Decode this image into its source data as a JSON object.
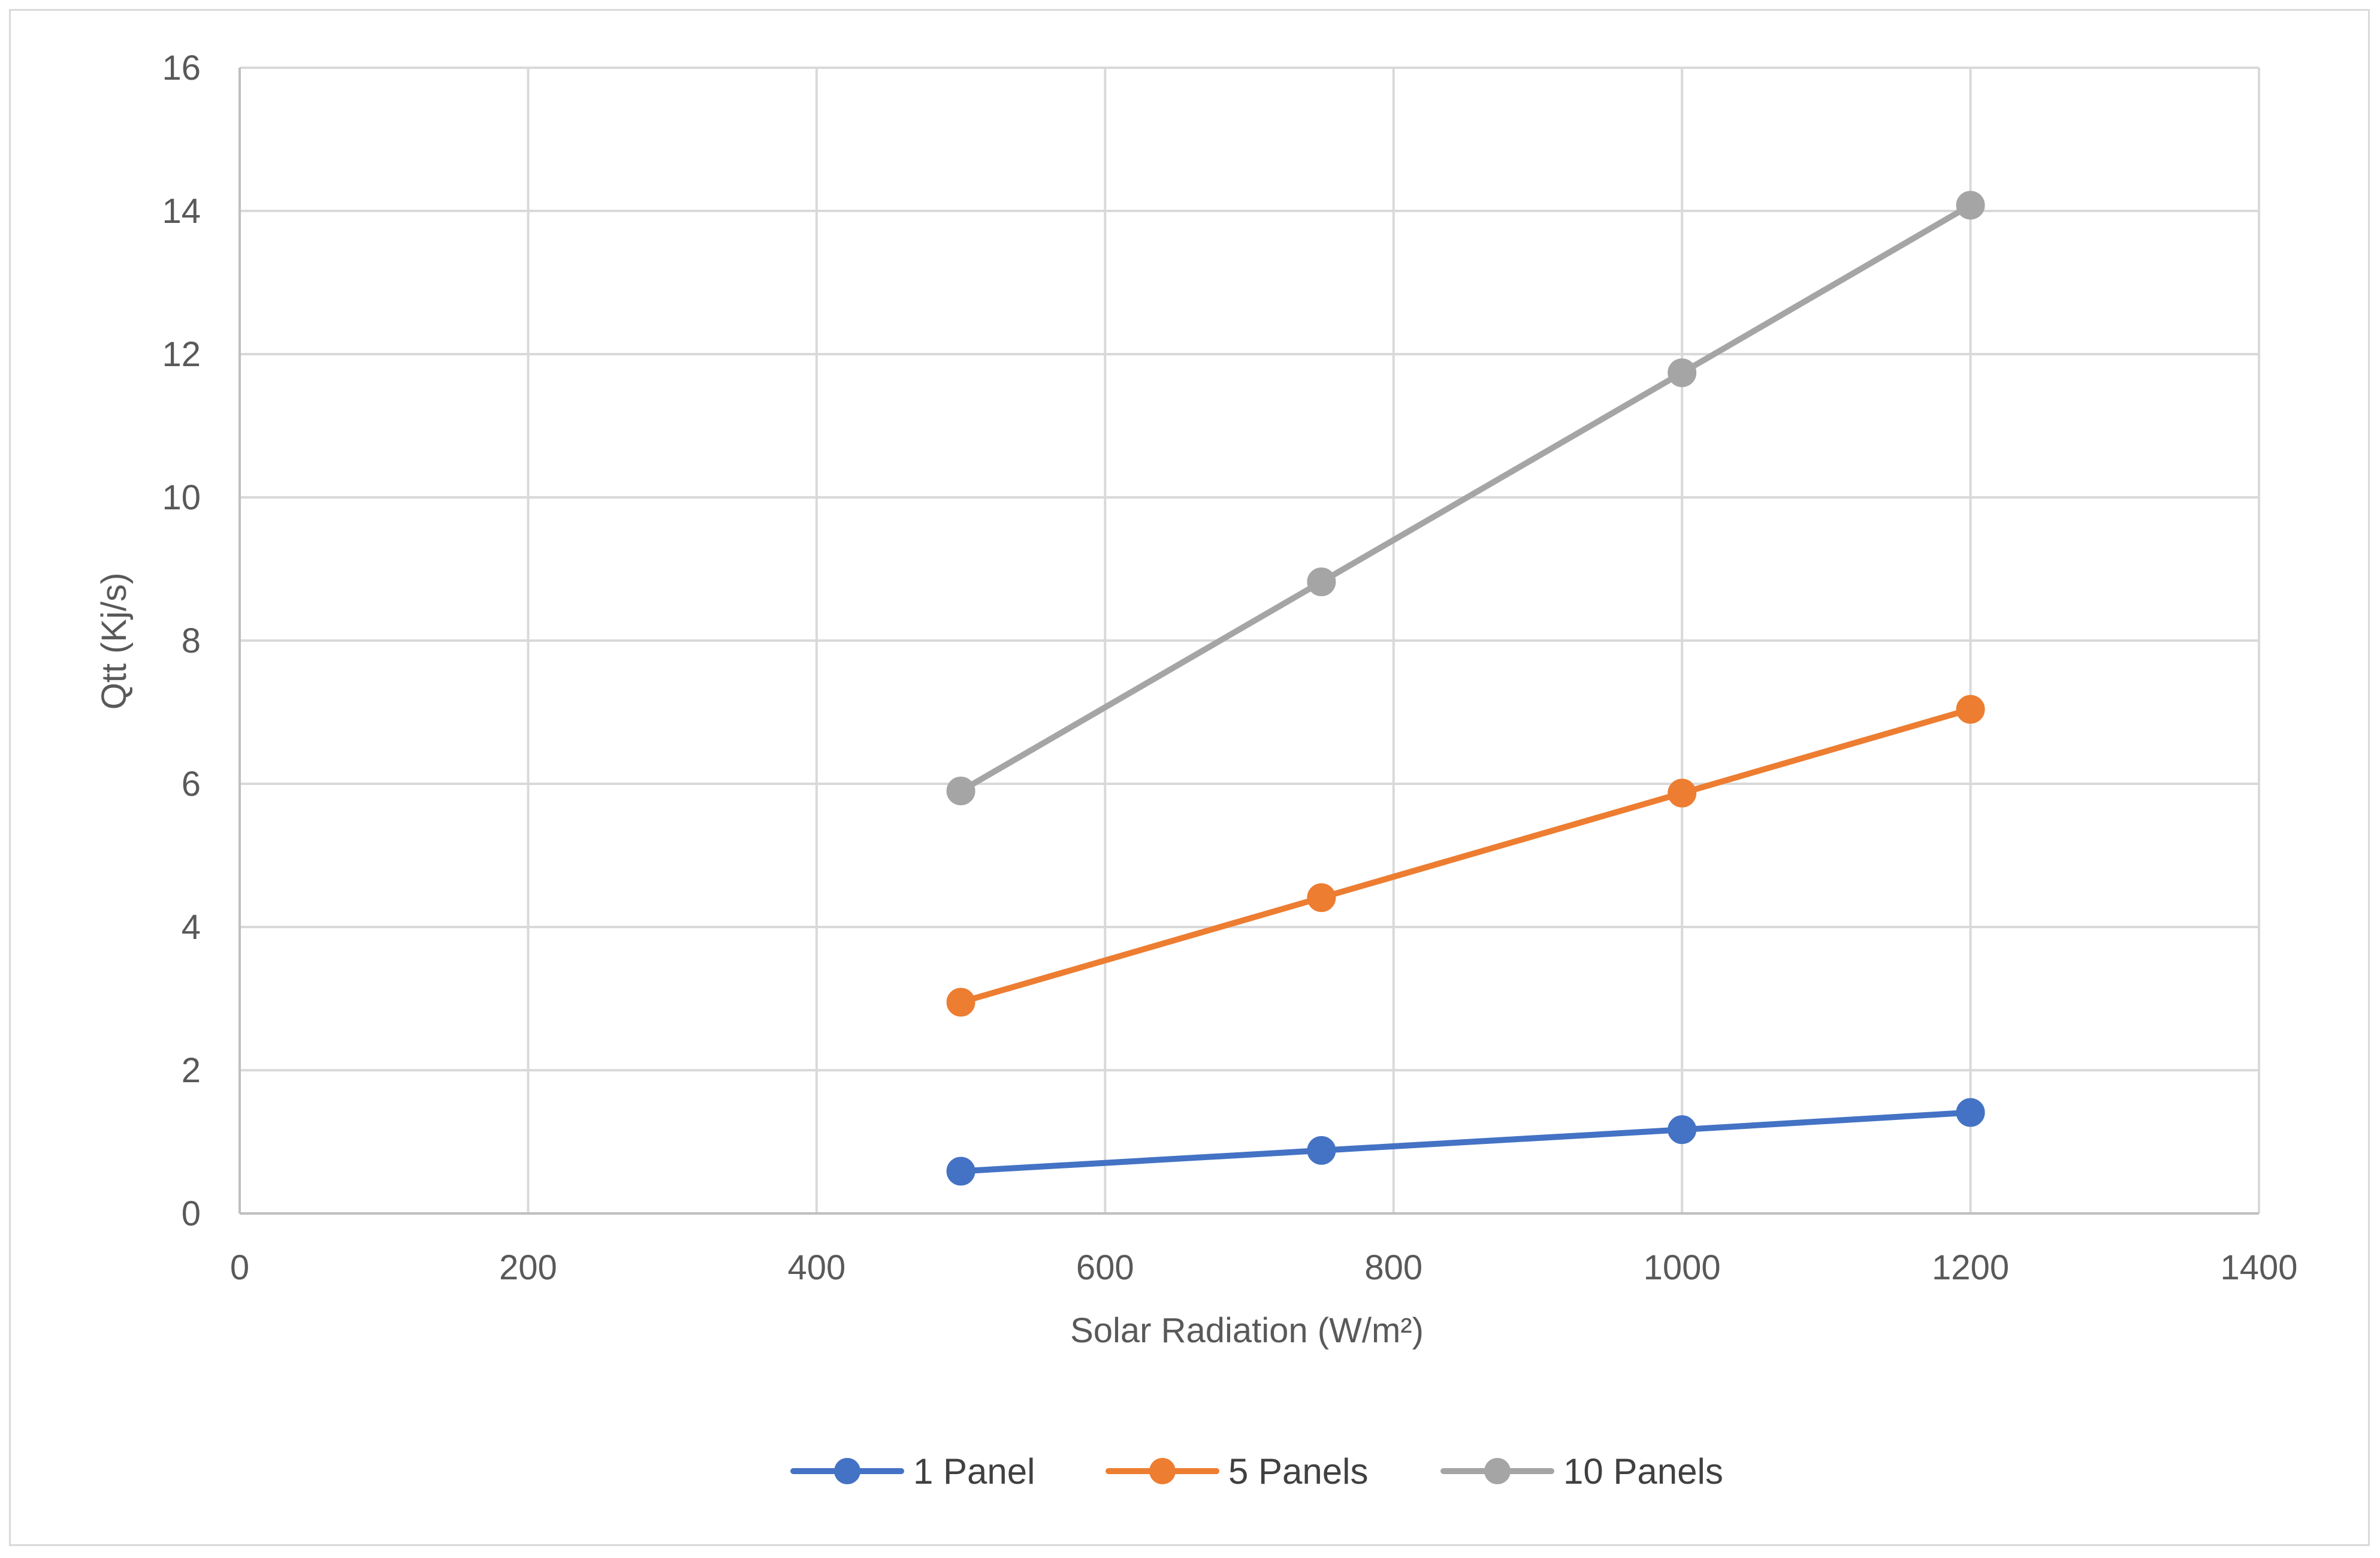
{
  "chart_data": {
    "type": "line",
    "title": "",
    "xlabel": "Solar Radiation (W/m²)",
    "ylabel": "Qtt (Kj/s)",
    "xlim": [
      0,
      1400
    ],
    "ylim": [
      0,
      16
    ],
    "x_ticks": [
      0,
      200,
      400,
      600,
      800,
      1000,
      1200,
      1400
    ],
    "y_ticks": [
      0,
      2,
      4,
      6,
      8,
      10,
      12,
      14,
      16
    ],
    "grid": true,
    "legend_position": "bottom",
    "series": [
      {
        "name": "1 Panel",
        "color": "#4472c4",
        "x": [
          500,
          750,
          1000,
          1200
        ],
        "y": [
          0.59,
          0.88,
          1.17,
          1.41
        ]
      },
      {
        "name": "5 Panels",
        "color": "#ed7d31",
        "x": [
          500,
          750,
          1000,
          1200
        ],
        "y": [
          2.95,
          4.41,
          5.87,
          7.04
        ]
      },
      {
        "name": "10 Panels",
        "color": "#a5a5a5",
        "x": [
          500,
          750,
          1000,
          1200
        ],
        "y": [
          5.9,
          8.82,
          11.74,
          14.08
        ]
      }
    ]
  }
}
